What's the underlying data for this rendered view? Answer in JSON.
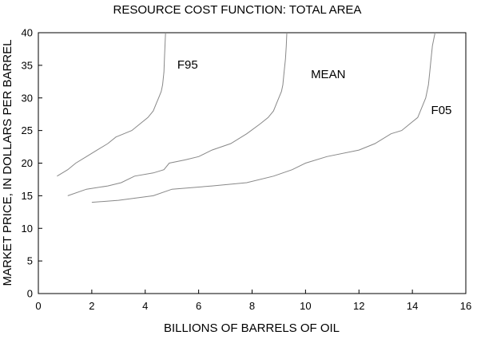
{
  "chart_data": {
    "type": "line",
    "title": "RESOURCE COST FUNCTION: TOTAL AREA",
    "xlabel": "BILLIONS OF BARRELS OF OIL",
    "ylabel": "MARKET PRICE, IN DOLLARS PER BARREL",
    "xlim": [
      0,
      16
    ],
    "ylim": [
      0,
      40
    ],
    "xticks": [
      0,
      2,
      4,
      6,
      8,
      10,
      12,
      14,
      16
    ],
    "yticks": [
      0,
      5,
      10,
      15,
      20,
      25,
      30,
      35,
      40
    ],
    "grid": false,
    "legend": "none",
    "series": [
      {
        "name": "F95",
        "label_at": [
          5.2,
          34.5
        ],
        "points": [
          [
            0.7,
            18
          ],
          [
            1.1,
            19
          ],
          [
            1.4,
            20
          ],
          [
            1.8,
            21
          ],
          [
            2.2,
            22
          ],
          [
            2.6,
            23
          ],
          [
            2.9,
            24
          ],
          [
            3.2,
            24.5
          ],
          [
            3.5,
            25
          ],
          [
            3.8,
            26
          ],
          [
            4.1,
            27
          ],
          [
            4.3,
            28
          ],
          [
            4.4,
            29
          ],
          [
            4.5,
            30
          ],
          [
            4.6,
            31
          ],
          [
            4.65,
            32
          ],
          [
            4.7,
            34
          ],
          [
            4.72,
            36
          ],
          [
            4.74,
            38
          ],
          [
            4.76,
            40
          ]
        ]
      },
      {
        "name": "MEAN",
        "label_at": [
          10.2,
          33.0
        ],
        "points": [
          [
            1.1,
            15
          ],
          [
            1.8,
            16
          ],
          [
            2.6,
            16.5
          ],
          [
            3.1,
            17
          ],
          [
            3.6,
            18
          ],
          [
            4.3,
            18.5
          ],
          [
            4.7,
            19
          ],
          [
            4.9,
            20
          ],
          [
            5.5,
            20.5
          ],
          [
            6.0,
            21
          ],
          [
            6.5,
            22
          ],
          [
            7.2,
            23
          ],
          [
            7.8,
            24.5
          ],
          [
            8.3,
            26
          ],
          [
            8.6,
            27
          ],
          [
            8.8,
            28
          ],
          [
            8.9,
            29
          ],
          [
            9.0,
            30
          ],
          [
            9.1,
            31
          ],
          [
            9.15,
            32
          ],
          [
            9.2,
            34
          ],
          [
            9.25,
            36
          ],
          [
            9.28,
            38
          ],
          [
            9.3,
            40
          ]
        ]
      },
      {
        "name": "F05",
        "label_at": [
          14.7,
          27.5
        ],
        "points": [
          [
            2.0,
            14
          ],
          [
            3.0,
            14.3
          ],
          [
            4.3,
            15
          ],
          [
            5.0,
            16
          ],
          [
            6.5,
            16.5
          ],
          [
            7.8,
            17
          ],
          [
            8.8,
            18
          ],
          [
            9.5,
            19
          ],
          [
            10.0,
            20
          ],
          [
            10.8,
            21
          ],
          [
            12.0,
            22
          ],
          [
            12.6,
            23
          ],
          [
            13.2,
            24.5
          ],
          [
            13.6,
            25
          ],
          [
            13.9,
            26
          ],
          [
            14.2,
            27
          ],
          [
            14.3,
            28
          ],
          [
            14.4,
            29
          ],
          [
            14.5,
            30
          ],
          [
            14.55,
            31
          ],
          [
            14.6,
            32
          ],
          [
            14.65,
            34
          ],
          [
            14.7,
            36
          ],
          [
            14.75,
            38
          ],
          [
            14.85,
            40
          ]
        ]
      }
    ]
  },
  "colors": {
    "background": "#ffffff",
    "axis": "#000000",
    "series_line": "#888888",
    "text": "#000000"
  }
}
